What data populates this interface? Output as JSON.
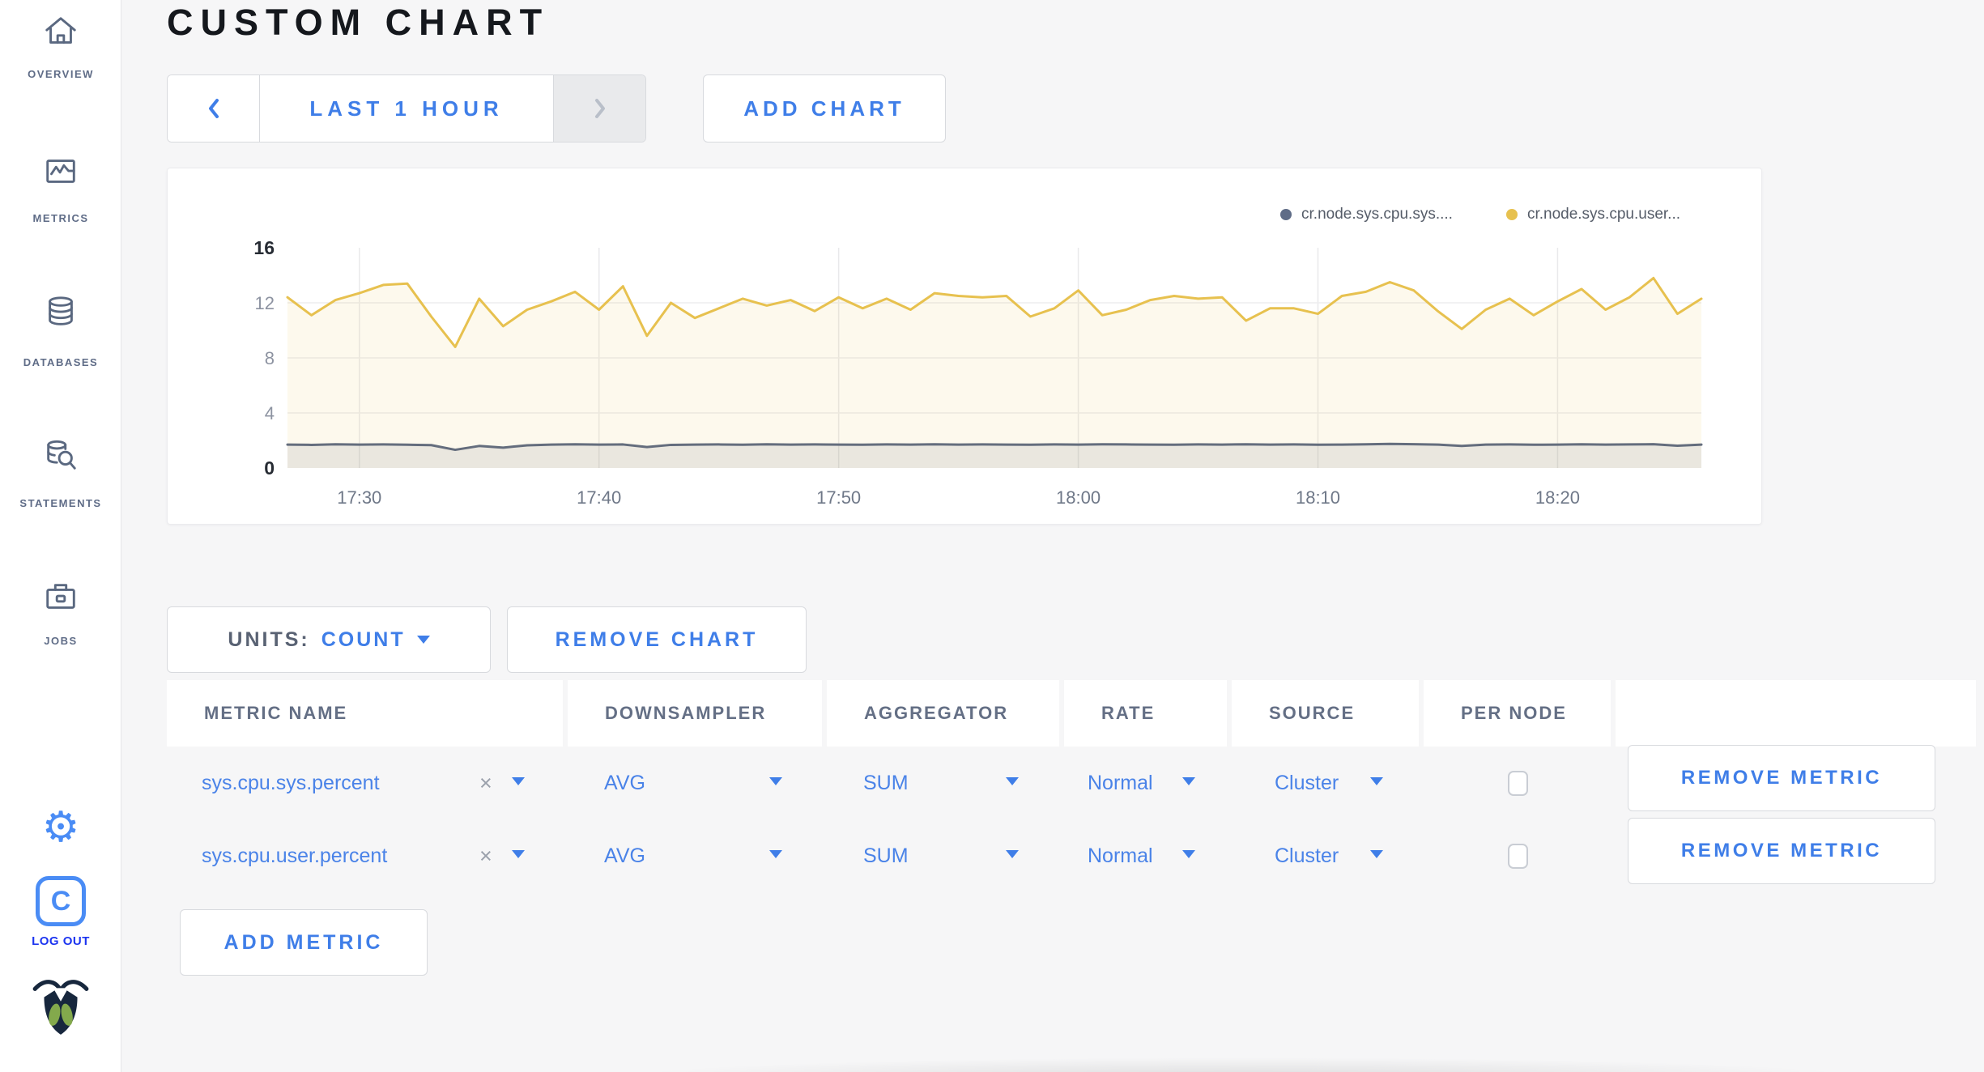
{
  "page": {
    "title": "CUSTOM CHART"
  },
  "sidebar": {
    "items": [
      {
        "label": "OVERVIEW",
        "icon": "home-icon"
      },
      {
        "label": "METRICS",
        "icon": "metrics-icon"
      },
      {
        "label": "DATABASES",
        "icon": "database-icon"
      },
      {
        "label": "STATEMENTS",
        "icon": "statements-icon"
      },
      {
        "label": "JOBS",
        "icon": "briefcase-icon"
      }
    ],
    "gear_glyph": "⚙",
    "logo_letter": "C",
    "logout_label": "LOG OUT"
  },
  "toolbar": {
    "time_range_label": "LAST 1 HOUR",
    "add_chart_label": "ADD CHART"
  },
  "chart_card": {
    "legend": [
      {
        "label": "cr.node.sys.cpu.sys....",
        "color": "#5f6c87"
      },
      {
        "label": "cr.node.sys.cpu.user...",
        "color": "#e7c14f"
      }
    ]
  },
  "chart_data": {
    "type": "area",
    "title": "",
    "xlabel": "",
    "ylabel": "",
    "ylim": [
      0,
      16
    ],
    "yticks": [
      0,
      4,
      8,
      12,
      16
    ],
    "xticks": [
      "17:30",
      "17:40",
      "17:50",
      "18:00",
      "18:10",
      "18:20"
    ],
    "grid": true,
    "legend_position": "top-right",
    "categories": [
      "17:27",
      "17:28",
      "17:29",
      "17:30",
      "17:31",
      "17:32",
      "17:33",
      "17:34",
      "17:35",
      "17:36",
      "17:37",
      "17:38",
      "17:39",
      "17:40",
      "17:41",
      "17:42",
      "17:43",
      "17:44",
      "17:45",
      "17:46",
      "17:47",
      "17:48",
      "17:49",
      "17:50",
      "17:51",
      "17:52",
      "17:53",
      "17:54",
      "17:55",
      "17:56",
      "17:57",
      "17:58",
      "17:59",
      "18:00",
      "18:01",
      "18:02",
      "18:03",
      "18:04",
      "18:05",
      "18:06",
      "18:07",
      "18:08",
      "18:09",
      "18:10",
      "18:11",
      "18:12",
      "18:13",
      "18:14",
      "18:15",
      "18:16",
      "18:17",
      "18:18",
      "18:19",
      "18:20",
      "18:21",
      "18:22",
      "18:23",
      "18:24",
      "18:25",
      "18:26"
    ],
    "series": [
      {
        "name": "cr.node.sys.cpu.sys....",
        "color": "#646d7d",
        "fill": "rgba(100,109,125,0.12)",
        "values": [
          1.7,
          1.68,
          1.72,
          1.7,
          1.71,
          1.69,
          1.66,
          1.32,
          1.6,
          1.48,
          1.65,
          1.7,
          1.72,
          1.7,
          1.71,
          1.52,
          1.68,
          1.7,
          1.71,
          1.69,
          1.72,
          1.7,
          1.71,
          1.7,
          1.69,
          1.71,
          1.7,
          1.72,
          1.7,
          1.71,
          1.7,
          1.69,
          1.71,
          1.7,
          1.72,
          1.71,
          1.7,
          1.69,
          1.71,
          1.7,
          1.72,
          1.7,
          1.71,
          1.69,
          1.7,
          1.72,
          1.75,
          1.73,
          1.7,
          1.6,
          1.7,
          1.71,
          1.69,
          1.7,
          1.72,
          1.7,
          1.71,
          1.73,
          1.62,
          1.7
        ]
      },
      {
        "name": "cr.node.sys.cpu.user...",
        "color": "#e7c14f",
        "fill": "rgba(231,193,79,0.10)",
        "values": [
          12.4,
          11.1,
          12.2,
          12.7,
          13.3,
          13.4,
          11.0,
          8.8,
          12.3,
          10.3,
          11.5,
          12.1,
          12.8,
          11.5,
          13.2,
          9.6,
          12.0,
          10.9,
          11.6,
          12.3,
          11.8,
          12.2,
          11.4,
          12.4,
          11.6,
          12.3,
          11.5,
          12.7,
          12.5,
          12.4,
          12.5,
          11.0,
          11.6,
          12.9,
          11.1,
          11.5,
          12.2,
          12.5,
          12.3,
          12.4,
          10.7,
          11.6,
          11.6,
          11.2,
          12.5,
          12.8,
          13.5,
          12.9,
          11.4,
          10.1,
          11.5,
          12.3,
          11.1,
          12.1,
          13.0,
          11.5,
          12.4,
          13.8,
          11.2,
          12.3
        ]
      }
    ]
  },
  "units_bar": {
    "units_label": "UNITS:",
    "units_value": "COUNT",
    "remove_chart_label": "REMOVE CHART"
  },
  "metrics_table": {
    "headers": [
      "METRIC NAME",
      "DOWNSAMPLER",
      "AGGREGATOR",
      "RATE",
      "SOURCE",
      "PER NODE"
    ],
    "rows": [
      {
        "metric": "sys.cpu.sys.percent",
        "clear": "×",
        "downsampler": "AVG",
        "aggregator": "SUM",
        "rate": "Normal",
        "source": "Cluster",
        "per_node_checked": false,
        "remove_label": "REMOVE METRIC"
      },
      {
        "metric": "sys.cpu.user.percent",
        "clear": "×",
        "downsampler": "AVG",
        "aggregator": "SUM",
        "rate": "Normal",
        "source": "Cluster",
        "per_node_checked": false,
        "remove_label": "REMOVE METRIC"
      }
    ],
    "add_metric_label": "ADD METRIC"
  },
  "colors": {
    "accent_blue": "#3f7ee8",
    "link_blue": "#4a83e8",
    "logout_blue": "#1d35f0",
    "sidebar_gray": "#5f6c87",
    "series_sys_gray": "#646d7d",
    "series_user_yellow": "#e7c14f"
  }
}
